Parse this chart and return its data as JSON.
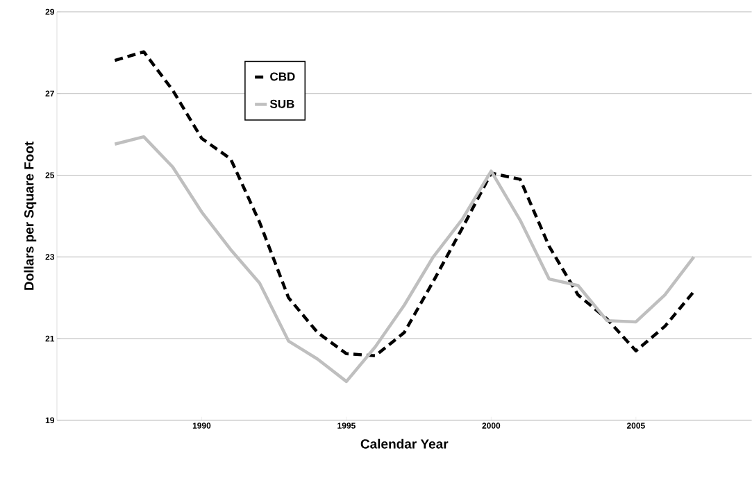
{
  "chart_data": {
    "type": "line",
    "xlabel": "Calendar Year",
    "ylabel": "Dollars per Square Foot",
    "x": [
      1987,
      1988,
      1989,
      1990,
      1991,
      1992,
      1993,
      1994,
      1995,
      1996,
      1997,
      1998,
      1999,
      2000,
      2001,
      2002,
      2003,
      2004,
      2005,
      2006,
      2007
    ],
    "series": [
      {
        "name": "CBD",
        "color": "#000000",
        "line_style": "dashed",
        "values": [
          27.81,
          28.02,
          27.08,
          25.9,
          25.4,
          23.85,
          22.0,
          21.15,
          20.63,
          20.58,
          21.15,
          22.4,
          23.7,
          25.05,
          24.9,
          23.26,
          22.07,
          21.48,
          20.7,
          21.3,
          22.15
        ]
      },
      {
        "name": "SUB",
        "color": "#bfbfbf",
        "line_style": "solid",
        "values": [
          25.76,
          25.94,
          25.2,
          24.1,
          23.18,
          22.36,
          20.94,
          20.5,
          19.95,
          20.8,
          21.82,
          23.0,
          23.92,
          25.1,
          23.9,
          22.46,
          22.3,
          21.44,
          21.41,
          22.07,
          23.0
        ]
      }
    ],
    "xlim": [
      1985,
      2009
    ],
    "xticks": [
      1990,
      1995,
      2000,
      2005
    ],
    "ylim": [
      19,
      29
    ],
    "yticks": [
      19,
      21,
      23,
      25,
      27,
      29
    ],
    "grid": "y",
    "legend": "top left",
    "marker": "none"
  }
}
